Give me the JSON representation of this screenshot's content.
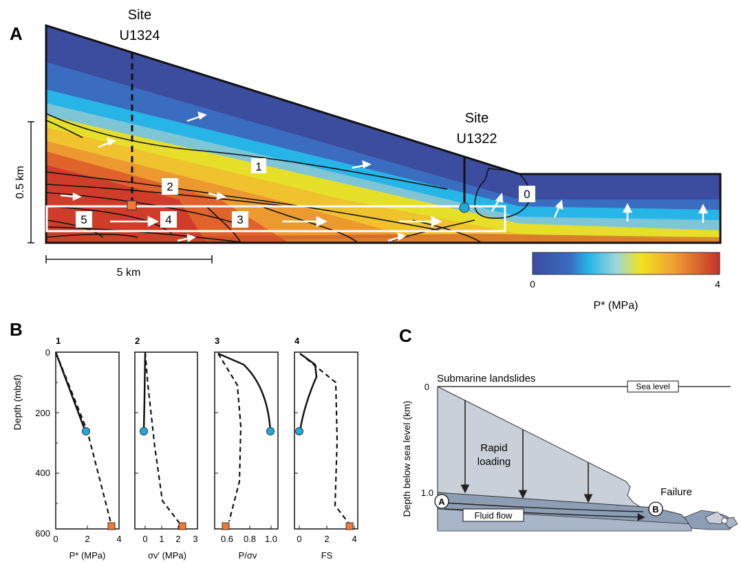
{
  "panel_a": {
    "letter": "A",
    "site1_line1": "Site",
    "site1_line2": "U1324",
    "site2_line1": "Site",
    "site2_line2": "U1322",
    "contour_labels": [
      "1",
      "2",
      "3",
      "4",
      "5",
      "0"
    ],
    "scale_vertical": "0.5 km",
    "scale_horizontal": "5 km",
    "colorbar_min": "0",
    "colorbar_max": "4",
    "colorbar_label": "P* (MPa)",
    "colors": {
      "low": "#3a4fa0",
      "mid_cyan": "#25b6e8",
      "yellow": "#f2e31e",
      "high": "#c4312b",
      "marker_site": "#ef7a34",
      "marker_circle": "#1fa9dc"
    }
  },
  "panel_b": {
    "letter": "B",
    "ylabel": "Depth (mbsf)",
    "yticks": [
      "0",
      "200",
      "400",
      "600"
    ],
    "plots": [
      {
        "num": "1",
        "xlabel": "P* (MPa)",
        "xticks": [
          "0",
          "2",
          "4"
        ]
      },
      {
        "num": "2",
        "xlabel": "σv′ (MPa)",
        "xticks": [
          "0",
          "1",
          "2",
          "3"
        ]
      },
      {
        "num": "3",
        "xlabel": "P/σv",
        "xticks": [
          "0.6",
          "0.8",
          "1.0"
        ]
      },
      {
        "num": "4",
        "xlabel": "FS",
        "xticks": [
          "0",
          "2",
          "4"
        ]
      }
    ]
  },
  "panel_c": {
    "letter": "C",
    "title": "Submarine landslides",
    "sea_level": "Sea level",
    "ylabel": "Depth below sea level (km)",
    "ytick_0": "0",
    "ytick_1": "1.0",
    "rapid_loading": "Rapid\nloading",
    "rapid_line1": "Rapid",
    "rapid_line2": "loading",
    "failure": "Failure",
    "fluid_flow": "Fluid flow",
    "marker_a": "A",
    "marker_b": "B"
  }
}
